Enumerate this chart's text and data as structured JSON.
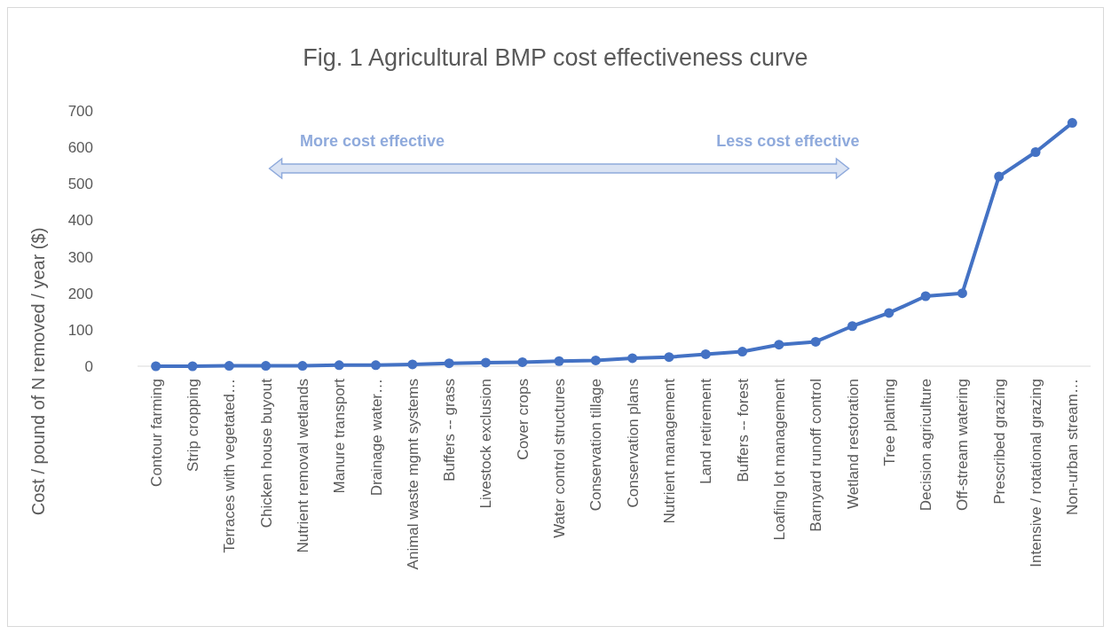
{
  "chart_data": {
    "type": "line",
    "title": "Fig. 1 Agricultural BMP cost effectiveness curve",
    "ylabel": "Cost / pound of N removed / year ($)",
    "categories": [
      "Contour farming",
      "Strip cropping",
      "Terraces with vegetated…",
      "Chicken house buyout",
      "Nutrient removal wetlands",
      "Manure transport",
      "Drainage water…",
      "Animal waste mgmt systems",
      "Buffers -- grass",
      "Livestock exclusion",
      "Cover crops",
      "Water control structures",
      "Conservation tillage",
      "Conservation plans",
      "Nutrient management",
      "Land retirement",
      "Buffers -- forest",
      "Loafing lot management",
      "Barnyard runoff control",
      "Wetland restoration",
      "Tree planting",
      "Decision agriculture",
      "Off-stream watering",
      "Prescribed grazing",
      "Intensive / rotational grazing",
      "Non-urban stream…"
    ],
    "series": [
      {
        "color": "#4472c4",
        "values": [
          0,
          0,
          1,
          1,
          1,
          3,
          3,
          5,
          8,
          10,
          11,
          14,
          16,
          22,
          25,
          33,
          40,
          59,
          67,
          110,
          146,
          192,
          200,
          520,
          587,
          667
        ]
      }
    ],
    "ylim": [
      0,
      700
    ],
    "yticks": [
      0,
      100,
      200,
      300,
      400,
      500,
      600,
      700
    ],
    "grid": false,
    "marker": "circle",
    "line_style": "solid",
    "annotations": [
      "More cost effective",
      "Less cost effective"
    ]
  }
}
